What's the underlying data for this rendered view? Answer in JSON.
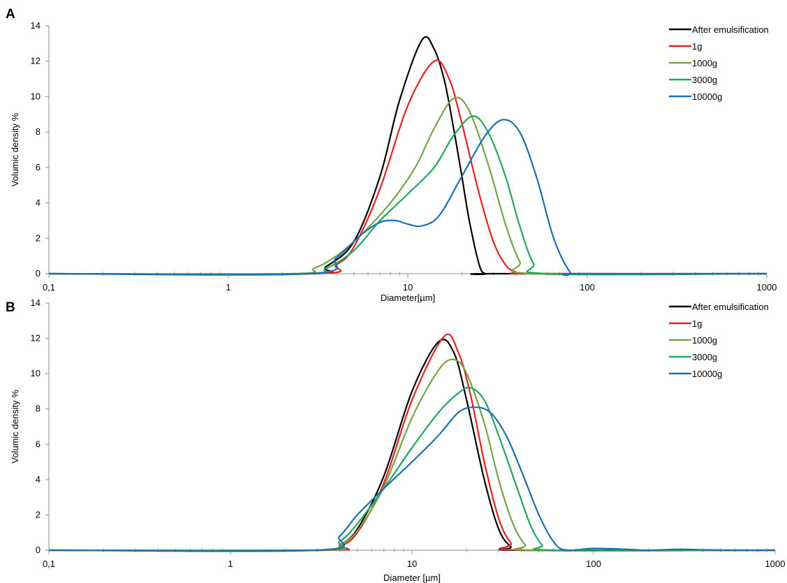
{
  "chart_data": [
    {
      "panel": "A",
      "type": "line",
      "xlabel": "Diameter[µm]",
      "ylabel": "Volumic density %",
      "xscale": "log",
      "xlim": [
        0.1,
        1000
      ],
      "ylim": [
        0,
        14
      ],
      "xticks": [
        "0,1",
        "1",
        "10",
        "100",
        "1000"
      ],
      "yticks": [
        "0",
        "2",
        "4",
        "6",
        "8",
        "10",
        "12",
        "14"
      ],
      "grid": false,
      "legend_position": "top-right",
      "series": [
        {
          "name": "After emulsification",
          "color": "#000000",
          "x": [
            2.8,
            3.5,
            5,
            7,
            9,
            12,
            14,
            16,
            18,
            20,
            22,
            25,
            27,
            30
          ],
          "y": [
            0,
            0.4,
            1.8,
            5.5,
            9.8,
            13.2,
            12.7,
            10.9,
            8.2,
            5.5,
            3.0,
            0.5,
            0,
            0
          ]
        },
        {
          "name": "1g",
          "color": "#e8201d",
          "x": [
            3,
            4,
            5,
            7,
            10,
            14,
            17,
            20,
            25,
            30,
            35,
            40,
            50
          ],
          "y": [
            0,
            0.5,
            1.5,
            4.8,
            9.5,
            12.0,
            11.0,
            8.5,
            4.5,
            1.8,
            0.5,
            0.1,
            0
          ]
        },
        {
          "name": "1000g",
          "color": "#77a445",
          "x": [
            2.2,
            3,
            4,
            5.5,
            8,
            11,
            14,
            18,
            22,
            28,
            35,
            42,
            50
          ],
          "y": [
            0,
            0.3,
            1.0,
            2.2,
            4.0,
            6.0,
            8.2,
            9.9,
            9.2,
            6.2,
            2.8,
            0.7,
            0
          ]
        },
        {
          "name": "3000g",
          "color": "#1fa75a",
          "x": [
            2.5,
            3.5,
            5,
            7,
            10,
            14,
            18,
            23,
            28,
            35,
            42,
            50,
            60
          ],
          "y": [
            0,
            0.3,
            1.3,
            3.0,
            4.5,
            6.0,
            7.8,
            8.9,
            8.0,
            5.5,
            2.7,
            0.6,
            0
          ]
        },
        {
          "name": "10000g",
          "color": "#1a6fb6",
          "x": [
            2.8,
            4,
            5.5,
            7,
            8.5,
            10,
            12,
            15,
            20,
            27,
            34,
            42,
            52,
            65,
            80,
            90
          ],
          "y": [
            0,
            0.9,
            2.2,
            2.9,
            3.0,
            2.8,
            2.7,
            3.3,
            5.5,
            7.8,
            8.7,
            8.0,
            5.5,
            2.0,
            0.1,
            0
          ]
        }
      ]
    },
    {
      "panel": "B",
      "type": "line",
      "xlabel": "Diameter [µm]",
      "ylabel": "Volumic density %",
      "xscale": "log",
      "xlim": [
        0.1,
        1000
      ],
      "ylim": [
        0,
        14
      ],
      "xticks": [
        "0,1",
        "1",
        "10",
        "100",
        "1000"
      ],
      "yticks": [
        "0",
        "2",
        "4",
        "6",
        "8",
        "10",
        "12",
        "14"
      ],
      "grid": false,
      "legend_position": "top-right",
      "series": [
        {
          "name": "After emulsification",
          "color": "#000000",
          "x": [
            3.2,
            4,
            5,
            7,
            10,
            14,
            17,
            20,
            25,
            30,
            35,
            40
          ],
          "y": [
            0,
            0.3,
            1.2,
            4.2,
            9.0,
            11.8,
            11.2,
            8.5,
            4.0,
            1.2,
            0.2,
            0
          ]
        },
        {
          "name": "1g",
          "color": "#e8201d",
          "x": [
            3.3,
            4,
            5,
            7,
            10,
            15,
            18,
            21,
            25,
            30,
            35,
            40
          ],
          "y": [
            0,
            0.2,
            1.0,
            3.8,
            8.5,
            12.1,
            11.2,
            8.8,
            5.0,
            1.8,
            0.4,
            0
          ]
        },
        {
          "name": "1000g",
          "color": "#77a445",
          "x": [
            3.1,
            4,
            5,
            7,
            10,
            14,
            17,
            20,
            25,
            30,
            36,
            42,
            48
          ],
          "y": [
            0,
            0.3,
            1.1,
            3.6,
            7.5,
            10.2,
            10.8,
            10.0,
            7.2,
            4.0,
            1.5,
            0.3,
            0
          ]
        },
        {
          "name": "3000g",
          "color": "#1fa75a",
          "x": [
            3,
            4,
            5,
            7,
            10,
            14,
            18,
            21,
            25,
            30,
            38,
            45,
            52,
            60
          ],
          "y": [
            0,
            0.5,
            1.5,
            3.5,
            5.8,
            7.8,
            8.9,
            9.2,
            8.5,
            6.5,
            3.5,
            1.4,
            0.3,
            0
          ]
        },
        {
          "name": "10000g",
          "color": "#1a6fb6",
          "x": [
            3,
            4,
            5,
            7,
            10,
            14,
            18,
            22,
            27,
            33,
            40,
            50,
            60,
            70,
            100,
            150,
            200,
            300,
            400,
            600
          ],
          "y": [
            0,
            0.8,
            2.0,
            3.5,
            5.0,
            6.5,
            7.8,
            8.1,
            7.8,
            6.5,
            4.5,
            2.0,
            0.5,
            0,
            0.1,
            0.05,
            0,
            0.05,
            0.02,
            0
          ]
        }
      ]
    }
  ]
}
